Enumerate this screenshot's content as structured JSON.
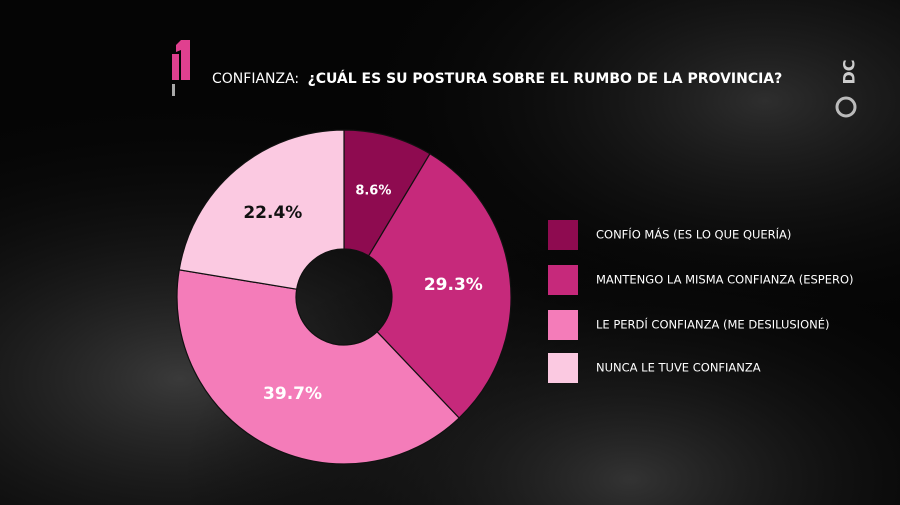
{
  "chart_data": {
    "type": "donut",
    "title_prefix": "CONFIANZA:",
    "title": "¿CUÁL ES SU POSTURA SOBRE EL RUMBO DE LA PROVINCIA?",
    "brand": "DC",
    "categories": [
      "CONFÍO MÁS (ES LO QUE QUERÍA)",
      "MANTENGO LA MISMA CONFIANZA (ESPERO)",
      "LE PERDÍ CONFIANZA (ME DESILUSIONÉ)",
      "NUNCA LE TUVE CONFIANZA"
    ],
    "values": [
      8.6,
      29.3,
      39.7,
      22.4
    ],
    "value_labels": [
      "8.6%",
      "29.3%",
      "39.7%",
      "22.4%"
    ],
    "colors": [
      "#8e0b50",
      "#c6297b",
      "#f47cb9",
      "#fbc9e1"
    ],
    "legend": "right"
  }
}
